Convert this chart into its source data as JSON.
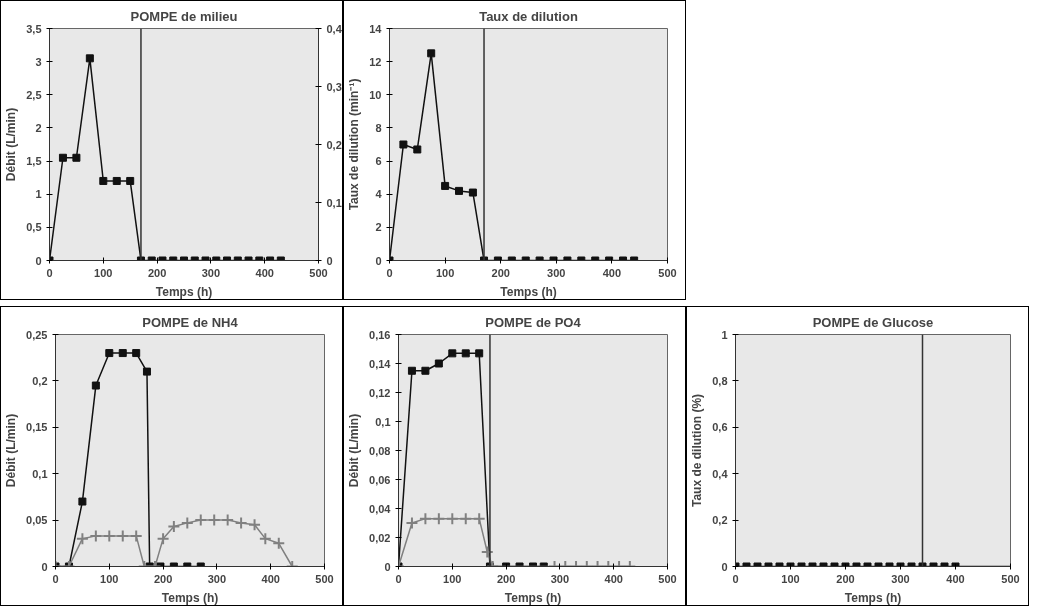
{
  "chart_data": [
    {
      "type": "line",
      "title": "POMPE de milieu",
      "xlabel": "Temps (h)",
      "ylabel": "Débit (L/min)",
      "xlim": [
        0,
        500
      ],
      "xticks": [
        0,
        100,
        200,
        300,
        400,
        500
      ],
      "ylim": [
        0,
        3.5
      ],
      "yticks": [
        0,
        {
          "value": 0.5,
          "label": "0,5"
        },
        1,
        {
          "value": 1.5,
          "label": "1,5"
        },
        2,
        {
          "value": 2.5,
          "label": "2,5"
        },
        3,
        {
          "value": 3.5,
          "label": "3,5"
        }
      ],
      "y2lim": [
        0,
        0.4
      ],
      "y2ticks": [
        0,
        {
          "value": 0.1,
          "label": "0,1"
        },
        {
          "value": 0.2,
          "label": "0,2"
        },
        {
          "value": 0.3,
          "label": "0,3"
        },
        {
          "value": 0.4,
          "label": "0,4"
        }
      ],
      "series": [
        {
          "color": "#111111",
          "marker": "square",
          "x": [
            0,
            25,
            50,
            75,
            100,
            125,
            150,
            170,
            190,
            210,
            230,
            250,
            270,
            290,
            310,
            330,
            350,
            370,
            390,
            410,
            430
          ],
          "values": [
            0,
            1.55,
            1.55,
            3.05,
            1.2,
            1.2,
            1.2,
            0,
            0,
            0,
            0,
            0,
            0,
            0,
            0,
            0,
            0,
            0,
            0,
            0,
            0
          ]
        }
      ],
      "ref_lines": [
        {
          "axis": "x",
          "value": 170,
          "color": "#333333"
        }
      ]
    },
    {
      "type": "line",
      "title": "Taux de dilution",
      "xlabel": "Temps (h)",
      "ylabel": "Taux de dilution (min⁻¹)",
      "xlim": [
        0,
        500
      ],
      "xticks": [
        0,
        100,
        200,
        300,
        400,
        500
      ],
      "ylim": [
        0,
        14
      ],
      "yticks": [
        0,
        2,
        4,
        6,
        8,
        10,
        12,
        14
      ],
      "series": [
        {
          "color": "#111111",
          "marker": "square",
          "x": [
            0,
            25,
            50,
            75,
            100,
            125,
            150,
            170,
            195,
            220,
            245,
            270,
            295,
            320,
            345,
            370,
            395,
            420,
            440
          ],
          "values": [
            0,
            7,
            6.7,
            12.5,
            4.5,
            4.2,
            4.1,
            0,
            0,
            0,
            0,
            0,
            0,
            0,
            0,
            0,
            0,
            0,
            0
          ]
        }
      ],
      "ref_lines": [
        {
          "axis": "x",
          "value": 170,
          "color": "#333333"
        }
      ]
    },
    {
      "type": "line",
      "title": "POMPE de NH4",
      "xlabel": "Temps (h)",
      "ylabel": "Débit (L/min)",
      "xlim": [
        0,
        500
      ],
      "xticks": [
        0,
        100,
        200,
        300,
        400,
        500
      ],
      "ylim": [
        0,
        0.25
      ],
      "yticks": [
        0,
        {
          "value": 0.05,
          "label": "0,05"
        },
        {
          "value": 0.1,
          "label": "0,1"
        },
        {
          "value": 0.15,
          "label": "0,15"
        },
        {
          "value": 0.2,
          "label": "0,2"
        },
        {
          "value": 0.25,
          "label": "0,25"
        }
      ],
      "series": [
        {
          "color": "#111111",
          "marker": "square",
          "x": [
            0,
            25,
            50,
            75,
            100,
            125,
            150,
            170,
            175,
            195,
            220,
            245,
            270
          ],
          "values": [
            0,
            0,
            0.07,
            0.195,
            0.23,
            0.23,
            0.23,
            0.21,
            0,
            0,
            0,
            0,
            0
          ]
        },
        {
          "color": "#808080",
          "marker": "cross",
          "x": [
            0,
            25,
            50,
            75,
            100,
            125,
            150,
            165,
            185,
            200,
            220,
            245,
            270,
            295,
            320,
            345,
            370,
            390,
            415,
            440
          ],
          "values": [
            0,
            0,
            0.03,
            0.033,
            0.033,
            0.033,
            0.033,
            0,
            0,
            0.03,
            0.043,
            0.047,
            0.05,
            0.05,
            0.05,
            0.047,
            0.045,
            0.03,
            0.025,
            0
          ]
        }
      ]
    },
    {
      "type": "line",
      "title": "POMPE de PO4",
      "xlabel": "Temps (h)",
      "ylabel": "Débit (L/min)",
      "xlim": [
        0,
        500
      ],
      "xticks": [
        0,
        100,
        200,
        300,
        400,
        500
      ],
      "ylim": [
        0,
        0.16
      ],
      "yticks": [
        0,
        {
          "value": 0.02,
          "label": "0,02"
        },
        {
          "value": 0.04,
          "label": "0,04"
        },
        {
          "value": 0.06,
          "label": "0,06"
        },
        {
          "value": 0.08,
          "label": "0,08"
        },
        {
          "value": 0.1,
          "label": "0,1"
        },
        {
          "value": 0.12,
          "label": "0,12"
        },
        {
          "value": 0.14,
          "label": "0,14"
        },
        {
          "value": 0.16,
          "label": "0,16"
        }
      ],
      "series": [
        {
          "color": "#111111",
          "marker": "square",
          "x": [
            0,
            25,
            50,
            75,
            100,
            125,
            150,
            170,
            200,
            225,
            250,
            270
          ],
          "values": [
            0,
            0.135,
            0.135,
            0.14,
            0.147,
            0.147,
            0.147,
            0,
            0,
            0,
            0,
            0
          ]
        },
        {
          "color": "#808080",
          "marker": "cross",
          "x": [
            0,
            25,
            50,
            75,
            100,
            125,
            150,
            165,
            175,
            290,
            310,
            330,
            350,
            370,
            390,
            410,
            430
          ],
          "values": [
            0,
            0.03,
            0.033,
            0.033,
            0.033,
            0.033,
            0.033,
            0.01,
            0,
            0,
            0,
            0,
            0,
            0,
            0,
            0,
            0
          ]
        }
      ],
      "ref_lines": [
        {
          "axis": "x",
          "value": 170,
          "color": "#333333"
        }
      ]
    },
    {
      "type": "line",
      "title": "POMPE de Glucose",
      "xlabel": "Temps (h)",
      "ylabel": "Taux de dilution (%)",
      "xlim": [
        0,
        500
      ],
      "xticks": [
        0,
        100,
        200,
        300,
        400,
        500
      ],
      "ylim": [
        0,
        1
      ],
      "yticks": [
        0,
        {
          "value": 0.2,
          "label": "0,2"
        },
        {
          "value": 0.4,
          "label": "0,4"
        },
        {
          "value": 0.6,
          "label": "0,6"
        },
        {
          "value": 0.8,
          "label": "0,8"
        },
        1
      ],
      "series": [
        {
          "color": "#111111",
          "marker": "square",
          "x": [
            0,
            20,
            40,
            60,
            80,
            100,
            120,
            140,
            160,
            180,
            200,
            220,
            240,
            260,
            280,
            300,
            320,
            340,
            360,
            380,
            400
          ],
          "values": [
            0,
            0,
            0,
            0,
            0,
            0,
            0,
            0,
            0,
            0,
            0,
            0,
            0,
            0,
            0,
            0,
            0,
            0,
            0,
            0,
            0
          ]
        },
        {
          "color": "#111111",
          "marker": "none",
          "x": [
            400,
            500
          ],
          "values": [
            0,
            0
          ]
        }
      ],
      "ref_lines": [
        {
          "axis": "x",
          "value": 340,
          "color": "#333333"
        }
      ]
    }
  ]
}
